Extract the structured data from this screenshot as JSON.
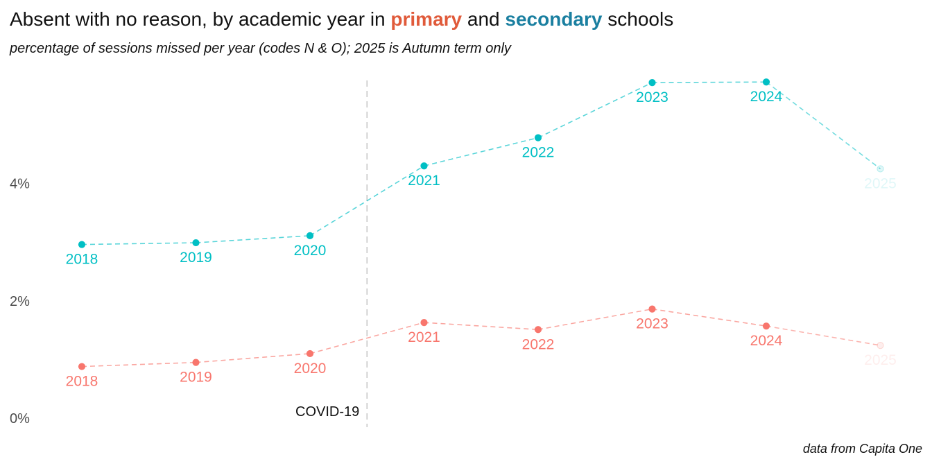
{
  "title": {
    "prefix": "Absent with no reason, by academic year in ",
    "primary_word": "primary",
    "middle": " and ",
    "secondary_word": "secondary",
    "suffix": " schools"
  },
  "subtitle": "percentage of sessions missed per year (codes N & O); 2025 is Autumn term only",
  "caption": "data from Capita One",
  "colors": {
    "primary": "#f8766d",
    "secondary": "#00bfc4",
    "primary_title": "#e05a3a",
    "secondary_title": "#1a7fa0",
    "covid_line": "#c8c8c8"
  },
  "chart_data": {
    "type": "line",
    "x": [
      "2018",
      "2019",
      "2020",
      "2021",
      "2022",
      "2023",
      "2024",
      "2025"
    ],
    "ylim": [
      0,
      6
    ],
    "yticks": [
      0,
      2,
      4
    ],
    "ytick_labels": [
      "0%",
      "2%",
      "4%"
    ],
    "grid": false,
    "series": [
      {
        "name": "primary",
        "values": [
          0.88,
          0.95,
          1.1,
          1.63,
          1.51,
          1.86,
          1.57,
          1.24
        ],
        "faded_last": true
      },
      {
        "name": "secondary",
        "values": [
          2.96,
          2.99,
          3.11,
          4.3,
          4.78,
          5.72,
          5.73,
          4.25
        ],
        "faded_last": true
      }
    ],
    "annotation": {
      "label": "COVID-19",
      "between": [
        "2020",
        "2021"
      ]
    }
  }
}
